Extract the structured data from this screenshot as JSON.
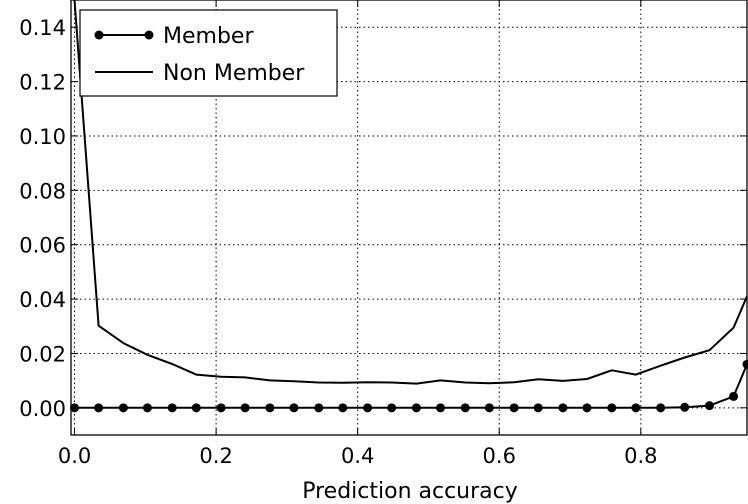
{
  "chart_data": {
    "type": "line",
    "title": "",
    "xlabel": "Prediction accuracy",
    "ylabel": "",
    "xlim": [
      -0.005,
      0.95
    ],
    "ylim": [
      -0.01,
      0.15
    ],
    "grid": true,
    "legend_position": "top-left",
    "xticks": [
      "0.0",
      "0.2",
      "0.4",
      "0.6",
      "0.8"
    ],
    "yticks": [
      "0.00",
      "0.02",
      "0.04",
      "0.06",
      "0.08",
      "0.10",
      "0.12",
      "0.14"
    ],
    "x": [
      0.0,
      0.034,
      0.069,
      0.103,
      0.138,
      0.172,
      0.207,
      0.241,
      0.276,
      0.31,
      0.345,
      0.379,
      0.414,
      0.448,
      0.483,
      0.517,
      0.552,
      0.586,
      0.621,
      0.655,
      0.69,
      0.724,
      0.759,
      0.793,
      0.828,
      0.862,
      0.897,
      0.931,
      0.95
    ],
    "series": [
      {
        "name": "Member",
        "marker": "circle",
        "values": [
          0.0,
          0.0,
          0.0,
          0.0,
          0.0,
          0.0,
          0.0,
          0.0,
          0.0,
          0.0,
          0.0,
          0.0,
          0.0,
          0.0,
          0.0,
          0.0,
          0.0,
          0.0,
          0.0,
          0.0,
          0.0,
          0.0,
          0.0,
          0.0,
          0.0,
          0.0002,
          0.0008,
          0.0042,
          0.016
        ]
      },
      {
        "name": "Non Member",
        "marker": "none",
        "values": [
          0.15,
          0.0302,
          0.0238,
          0.0195,
          0.0161,
          0.0122,
          0.0114,
          0.0112,
          0.0101,
          0.0098,
          0.0093,
          0.0092,
          0.0094,
          0.0093,
          0.0089,
          0.0101,
          0.0093,
          0.009,
          0.0094,
          0.0105,
          0.0099,
          0.0106,
          0.0138,
          0.0122,
          0.0155,
          0.0185,
          0.0212,
          0.0295,
          0.041
        ]
      }
    ]
  },
  "colors": {
    "line": "#000000",
    "grid": "#000000",
    "background": "#ffffff"
  }
}
